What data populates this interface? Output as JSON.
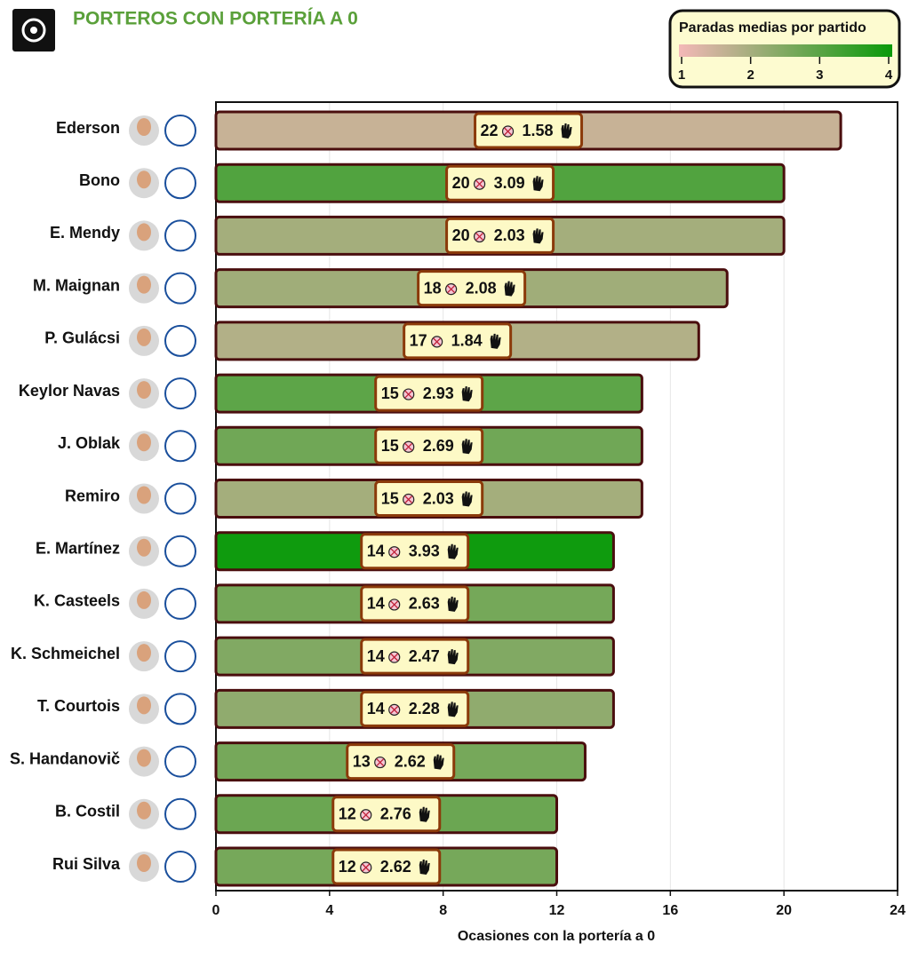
{
  "chart_data": {
    "type": "bar",
    "orientation": "horizontal",
    "title": "PORTEROS CON PORTERÍA A 0",
    "x_label": "Ocasiones con la portería a 0",
    "categories": [
      "Ederson",
      "Bono",
      "E. Mendy",
      "M. Maignan",
      "P. Gulácsi",
      "Keylor Navas",
      "J. Oblak",
      "Remiro",
      "E. Martínez",
      "K. Casteels",
      "K. Schmeichel",
      "T. Courtois",
      "S. Handanovič",
      "B. Costil",
      "Rui Silva"
    ],
    "values": [
      22,
      20,
      20,
      18,
      17,
      15,
      15,
      15,
      14,
      14,
      14,
      14,
      13,
      12,
      12
    ],
    "color_values": [
      1.58,
      3.09,
      2.03,
      2.08,
      1.84,
      2.93,
      2.69,
      2.03,
      3.93,
      2.63,
      2.47,
      2.28,
      2.62,
      2.76,
      2.62
    ],
    "color_label": "Paradas medias por partido",
    "color_lim": [
      1,
      4
    ],
    "color_ticks": [
      1,
      2,
      3,
      4
    ],
    "colormap": [
      "#f4b8b8",
      "#0a9a0a"
    ],
    "xlim": [
      0,
      24
    ],
    "xticks": [
      0,
      4,
      8,
      12,
      16,
      20,
      24
    ],
    "grid": true
  }
}
